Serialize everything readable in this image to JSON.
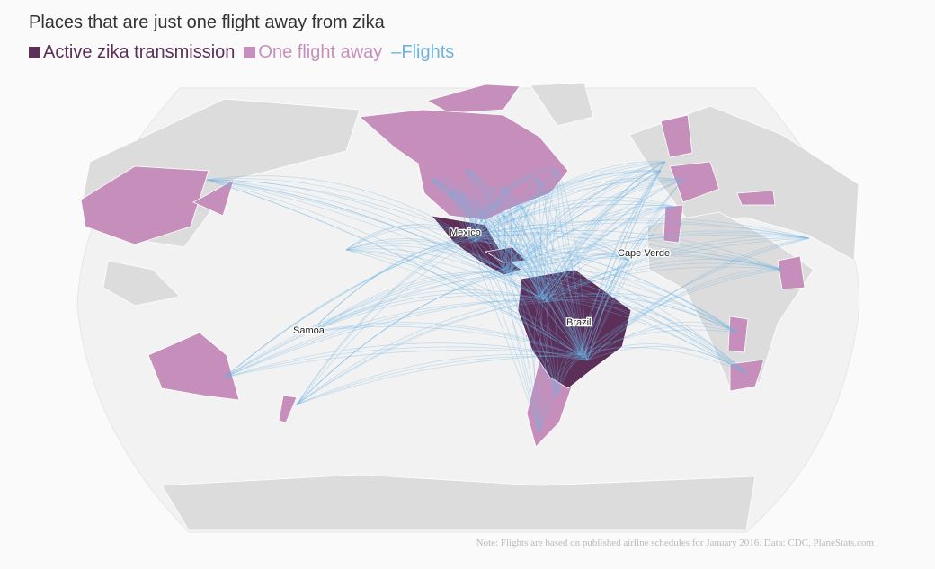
{
  "header": {
    "title": "Places that are just one flight away from zika"
  },
  "legend": [
    {
      "label": "Active zika transmission",
      "color": "#5b2f57"
    },
    {
      "label": "One flight away",
      "color": "#c68fbb"
    },
    {
      "label": "Flights",
      "color": "#6db3e1"
    }
  ],
  "map": {
    "labels": [
      "Mexico",
      "Cape Verde",
      "Samoa",
      "Brazil"
    ]
  },
  "note": "Note: Flights are based on published airline schedules for January 2016. Data: CDC, PlaneStats.com"
}
